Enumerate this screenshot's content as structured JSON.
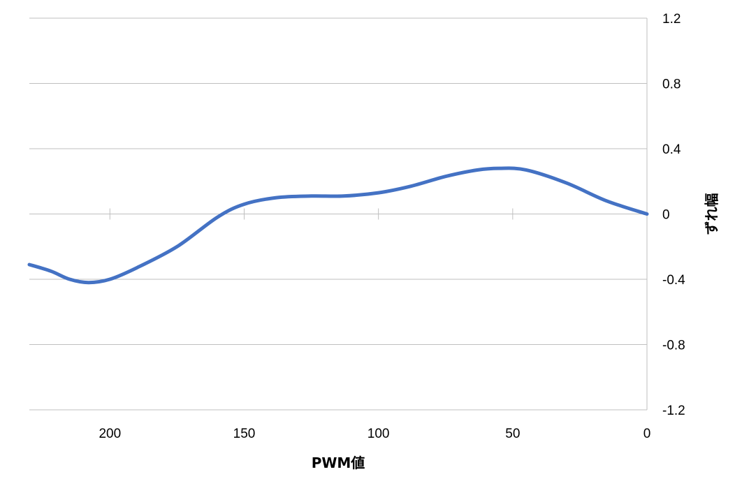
{
  "chart_data": {
    "type": "line",
    "xlabel": "PWM値",
    "ylabel": "ずれ幅",
    "xlim": [
      230,
      0
    ],
    "x_reversed": true,
    "ylim": [
      -1.2,
      1.2
    ],
    "y_axis_side": "right",
    "grid": "horizontal",
    "legend": "none",
    "x_ticks": [
      "200",
      "150",
      "100",
      "50",
      "0"
    ],
    "x_tick_values": [
      200,
      150,
      100,
      50,
      0
    ],
    "y_ticks": [
      "1.2",
      "0.8",
      "0.4",
      "0",
      "-0.4",
      "-0.8",
      "-1.2"
    ],
    "y_tick_values": [
      1.2,
      0.8,
      0.4,
      0,
      -0.4,
      -0.8,
      -1.2
    ],
    "series": [
      {
        "color": "#4472C4",
        "smooth": true,
        "points": [
          [
            230,
            -0.31
          ],
          [
            222,
            -0.35
          ],
          [
            215,
            -0.4
          ],
          [
            208,
            -0.42
          ],
          [
            200,
            -0.4
          ],
          [
            190,
            -0.33
          ],
          [
            175,
            -0.2
          ],
          [
            160,
            -0.02
          ],
          [
            150,
            0.06
          ],
          [
            138,
            0.1
          ],
          [
            125,
            0.11
          ],
          [
            113,
            0.11
          ],
          [
            100,
            0.13
          ],
          [
            88,
            0.17
          ],
          [
            75,
            0.23
          ],
          [
            63,
            0.27
          ],
          [
            55,
            0.28
          ],
          [
            45,
            0.27
          ],
          [
            30,
            0.19
          ],
          [
            15,
            0.08
          ],
          [
            0,
            0.0
          ]
        ]
      }
    ]
  }
}
